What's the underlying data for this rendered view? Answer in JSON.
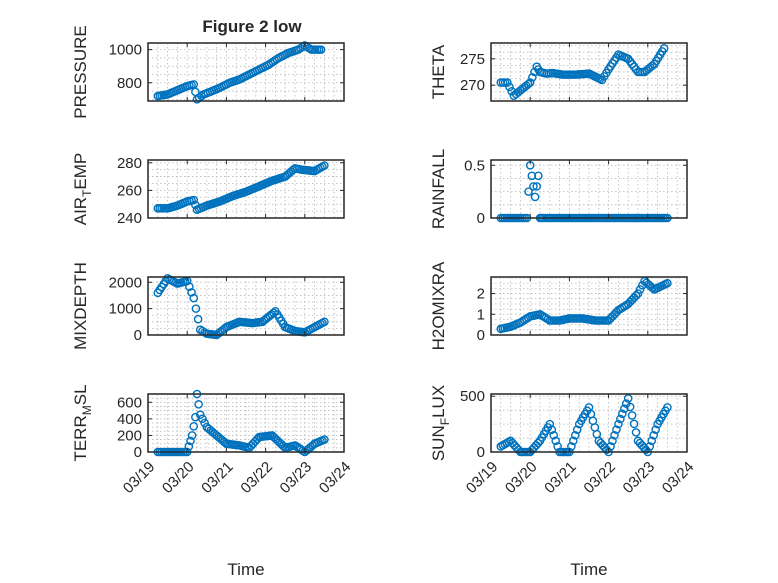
{
  "figure": {
    "title": "Figure 2 low",
    "marker_color": "#0072BD",
    "time_axis_label": "Time"
  },
  "chart_data": [
    {
      "type": "scatter",
      "id": "pressure",
      "title": "Figure 2 low",
      "ylabel": "PRESSURE",
      "xlim": [
        "2015-03-19",
        "2015-03-24"
      ],
      "xticks": [],
      "ylim": [
        690,
        1040
      ],
      "yticks": [
        800,
        1000
      ],
      "grid": true,
      "x": [
        "2015-03-19T06:00",
        "2015-03-19T12:00",
        "2015-03-19T18:00",
        "2015-03-20T00:00",
        "2015-03-20T04:00",
        "2015-03-20T06:00",
        "2015-03-20T10:00",
        "2015-03-20T14:00",
        "2015-03-20T20:00",
        "2015-03-21T02:00",
        "2015-03-21T08:00",
        "2015-03-21T14:00",
        "2015-03-21T20:00",
        "2015-03-22T02:00",
        "2015-03-22T08:00",
        "2015-03-22T14:00",
        "2015-03-22T20:00",
        "2015-03-23T00:00",
        "2015-03-23T04:00",
        "2015-03-23T10:00"
      ],
      "y": [
        720,
        730,
        755,
        780,
        790,
        700,
        730,
        745,
        770,
        800,
        820,
        850,
        880,
        910,
        950,
        980,
        1000,
        1025,
        1000,
        1000
      ]
    },
    {
      "type": "scatter",
      "id": "theta",
      "ylabel": "THETA",
      "xlim": [
        "2015-03-19",
        "2015-03-24"
      ],
      "xticks": [],
      "ylim": [
        267,
        278
      ],
      "yticks": [
        270,
        275
      ],
      "grid": true,
      "x": [
        "2015-03-19T06:00",
        "2015-03-19T10:00",
        "2015-03-19T14:00",
        "2015-03-19T18:00",
        "2015-03-20T00:00",
        "2015-03-20T04:00",
        "2015-03-20T06:00",
        "2015-03-20T10:00",
        "2015-03-20T14:00",
        "2015-03-20T20:00",
        "2015-03-21T04:00",
        "2015-03-21T12:00",
        "2015-03-21T20:00",
        "2015-03-22T00:00",
        "2015-03-22T06:00",
        "2015-03-22T12:00",
        "2015-03-22T18:00",
        "2015-03-22T22:00",
        "2015-03-23T04:00",
        "2015-03-23T10:00"
      ],
      "y": [
        270.5,
        270.5,
        268,
        269,
        270.5,
        273.5,
        272.5,
        272.2,
        272.3,
        272,
        272,
        272.2,
        271,
        273,
        275.8,
        275,
        272.5,
        272.5,
        274,
        277
      ]
    },
    {
      "type": "scatter",
      "id": "air_temp",
      "ylabel": "AIR_TEMP",
      "xlim": [
        "2015-03-19",
        "2015-03-24"
      ],
      "xticks": [],
      "ylim": [
        240,
        282
      ],
      "yticks": [
        240,
        260,
        280
      ],
      "grid": true,
      "x": [
        "2015-03-19T06:00",
        "2015-03-19T12:00",
        "2015-03-19T18:00",
        "2015-03-20T00:00",
        "2015-03-20T04:00",
        "2015-03-20T06:00",
        "2015-03-20T12:00",
        "2015-03-20T20:00",
        "2015-03-21T04:00",
        "2015-03-21T12:00",
        "2015-03-21T20:00",
        "2015-03-22T04:00",
        "2015-03-22T12:00",
        "2015-03-22T18:00",
        "2015-03-22T22:00",
        "2015-03-23T06:00",
        "2015-03-23T12:00"
      ],
      "y": [
        247,
        247,
        249,
        252,
        253,
        246,
        249,
        252,
        256,
        259,
        263,
        267,
        270,
        276,
        275,
        274,
        278
      ]
    },
    {
      "type": "scatter",
      "id": "rainfall",
      "ylabel": "RAINFALL",
      "xlim": [
        "2015-03-19",
        "2015-03-24"
      ],
      "xticks": [],
      "ylim": [
        0,
        0.55
      ],
      "yticks": [
        0,
        0.5
      ],
      "grid": true,
      "x": [
        "2015-03-19T06:00",
        "2015-03-19T18:00",
        "2015-03-19T22:00",
        "2015-03-20T00:00",
        "2015-03-20T01:00",
        "2015-03-20T02:00",
        "2015-03-20T03:00",
        "2015-03-20T05:00",
        "2015-03-20T06:00",
        "2015-03-20T08:00",
        "2015-03-20T18:00",
        "2015-03-21T12:00",
        "2015-03-22T06:00",
        "2015-03-23T00:00",
        "2015-03-23T12:00"
      ],
      "y": [
        0,
        0,
        0,
        0.5,
        0.4,
        0.3,
        0.2,
        0.4,
        0,
        0,
        0,
        0,
        0,
        0,
        0
      ]
    },
    {
      "type": "scatter",
      "id": "mixdepth",
      "ylabel": "MIXDEPTH",
      "xlim": [
        "2015-03-19",
        "2015-03-24"
      ],
      "xticks": [],
      "ylim": [
        0,
        2200
      ],
      "yticks": [
        0,
        1000,
        2000
      ],
      "grid": true,
      "x": [
        "2015-03-19T06:00",
        "2015-03-19T12:00",
        "2015-03-19T18:00",
        "2015-03-20T00:00",
        "2015-03-20T04:00",
        "2015-03-20T08:00",
        "2015-03-20T12:00",
        "2015-03-20T18:00",
        "2015-03-21T00:00",
        "2015-03-21T08:00",
        "2015-03-21T16:00",
        "2015-03-21T22:00",
        "2015-03-22T06:00",
        "2015-03-22T12:00",
        "2015-03-22T18:00",
        "2015-03-23T00:00",
        "2015-03-23T06:00",
        "2015-03-23T12:00"
      ],
      "y": [
        1600,
        2150,
        1950,
        2050,
        1400,
        200,
        50,
        0,
        300,
        500,
        450,
        500,
        900,
        300,
        150,
        100,
        300,
        500
      ]
    },
    {
      "type": "scatter",
      "id": "h2omixra",
      "ylabel": "H2OMIXRA",
      "xlim": [
        "2015-03-19",
        "2015-03-24"
      ],
      "xticks": [],
      "ylim": [
        0,
        2.8
      ],
      "yticks": [
        0,
        1,
        2
      ],
      "grid": true,
      "x": [
        "2015-03-19T06:00",
        "2015-03-19T12:00",
        "2015-03-19T18:00",
        "2015-03-20T00:00",
        "2015-03-20T06:00",
        "2015-03-20T12:00",
        "2015-03-20T18:00",
        "2015-03-21T00:00",
        "2015-03-21T08:00",
        "2015-03-21T16:00",
        "2015-03-22T00:00",
        "2015-03-22T06:00",
        "2015-03-22T12:00",
        "2015-03-22T18:00",
        "2015-03-22T22:00",
        "2015-03-23T04:00",
        "2015-03-23T12:00"
      ],
      "y": [
        0.3,
        0.4,
        0.6,
        0.9,
        1.0,
        0.7,
        0.7,
        0.8,
        0.8,
        0.7,
        0.7,
        1.2,
        1.5,
        2.0,
        2.6,
        2.2,
        2.5
      ]
    },
    {
      "type": "scatter",
      "id": "terr_msl",
      "ylabel": "TERR_MSL",
      "xlim": [
        "2015-03-19",
        "2015-03-24"
      ],
      "xticklabels": [
        "03/19",
        "03/20",
        "03/21",
        "03/22",
        "03/23",
        "03/24"
      ],
      "xlabel": "Time",
      "ylim": [
        0,
        700
      ],
      "yticks": [
        0,
        200,
        400,
        600
      ],
      "grid": true,
      "x": [
        "2015-03-19T06:00",
        "2015-03-19T12:00",
        "2015-03-19T18:00",
        "2015-03-20T00:00",
        "2015-03-20T03:00",
        "2015-03-20T05:00",
        "2015-03-20T06:00",
        "2015-03-20T08:00",
        "2015-03-20T12:00",
        "2015-03-20T18:00",
        "2015-03-21T00:00",
        "2015-03-21T08:00",
        "2015-03-21T14:00",
        "2015-03-21T20:00",
        "2015-03-22T04:00",
        "2015-03-22T12:00",
        "2015-03-22T18:00",
        "2015-03-23T00:00",
        "2015-03-23T06:00",
        "2015-03-23T12:00"
      ],
      "y": [
        0,
        0,
        0,
        0,
        200,
        420,
        700,
        450,
        300,
        200,
        100,
        80,
        50,
        180,
        200,
        50,
        80,
        0,
        100,
        150
      ]
    },
    {
      "type": "scatter",
      "id": "sun_flux",
      "ylabel": "SUN_FLUX",
      "xlim": [
        "2015-03-19",
        "2015-03-24"
      ],
      "xticklabels": [
        "03/19",
        "03/20",
        "03/21",
        "03/22",
        "03/23",
        "03/24"
      ],
      "xlabel": "Time",
      "ylim": [
        0,
        520
      ],
      "yticks": [
        0,
        500
      ],
      "grid": true,
      "x": [
        "2015-03-19T06:00",
        "2015-03-19T12:00",
        "2015-03-19T18:00",
        "2015-03-20T00:00",
        "2015-03-20T06:00",
        "2015-03-20T12:00",
        "2015-03-20T18:00",
        "2015-03-21T00:00",
        "2015-03-21T06:00",
        "2015-03-21T12:00",
        "2015-03-21T18:00",
        "2015-03-22T00:00",
        "2015-03-22T06:00",
        "2015-03-22T12:00",
        "2015-03-22T18:00",
        "2015-03-23T00:00",
        "2015-03-23T06:00",
        "2015-03-23T12:00"
      ],
      "y": [
        50,
        100,
        0,
        0,
        100,
        250,
        0,
        0,
        250,
        400,
        100,
        0,
        250,
        480,
        100,
        0,
        250,
        400
      ]
    }
  ]
}
